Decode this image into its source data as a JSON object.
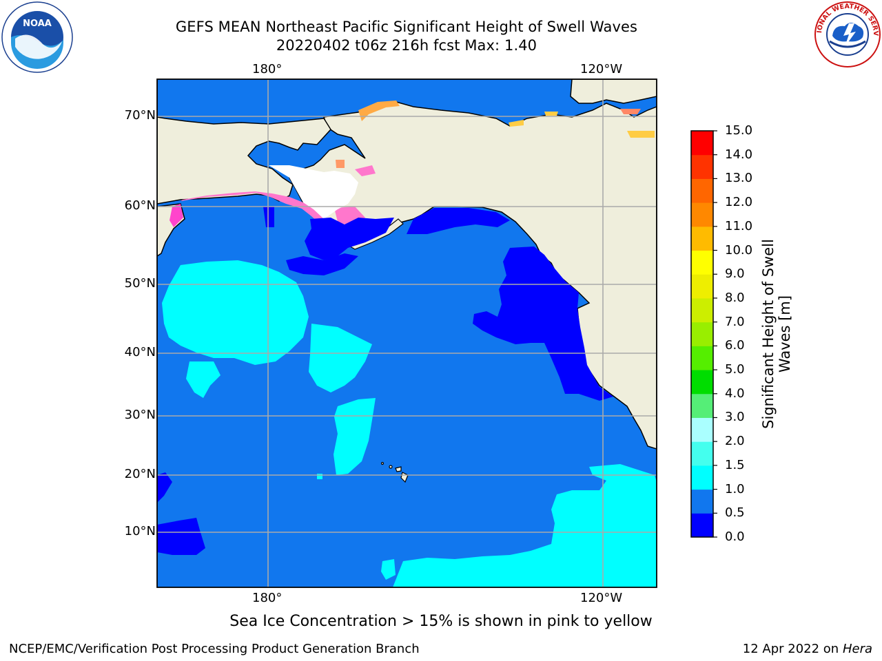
{
  "title": {
    "line1": "GEFS MEAN Northeast Pacific Significant Height of Swell Waves",
    "line2": "20220402 t06z 216h fcst   Max: 1.40"
  },
  "map": {
    "lon_labels_top": [
      "180°",
      "120°W"
    ],
    "lon_labels_bottom": [
      "180°",
      "120°W"
    ],
    "lat_labels": [
      "70°N",
      "60°N",
      "50°N",
      "40°N",
      "30°N",
      "20°N",
      "10°N"
    ]
  },
  "colorbar": {
    "label": "Significant Height of Swell Waves [m]",
    "ticks": [
      "0.0",
      "0.5",
      "1.0",
      "1.5",
      "2.0",
      "3.0",
      "4.0",
      "5.0",
      "6.0",
      "7.0",
      "8.0",
      "9.0",
      "10.0",
      "11.0",
      "12.0",
      "13.0",
      "14.0",
      "15.0"
    ],
    "colors": [
      "#0000ff",
      "#1177ee",
      "#00ffff",
      "#44ffee",
      "#aaffff",
      "#55ee77",
      "#00dd00",
      "#55ee00",
      "#99ee00",
      "#ccee00",
      "#eeee00",
      "#ffff00",
      "#ffbb00",
      "#ff8800",
      "#ff6600",
      "#ff3300",
      "#ff0000"
    ]
  },
  "caption": "Sea Ice Concentration > 15% is shown in pink to yellow",
  "footer": {
    "left": "NCEP/EMC/Verification Post Processing Product Generation Branch",
    "right_date": "12 Apr 2022 on ",
    "right_machine": "Hera"
  },
  "logos": {
    "left_icon": "noaa-logo-icon",
    "left_text": "NOAA",
    "right_icon": "nws-logo-icon",
    "right_text": "NATIONAL WEATHER SERVICE"
  },
  "colors": {
    "ocean_base": "#1177ee",
    "ocean_calm": "#0000ff",
    "ocean_swell": "#00ffff",
    "land": "#efeedc",
    "ice": "#ff77cc",
    "grid": "#aaaaaa"
  }
}
